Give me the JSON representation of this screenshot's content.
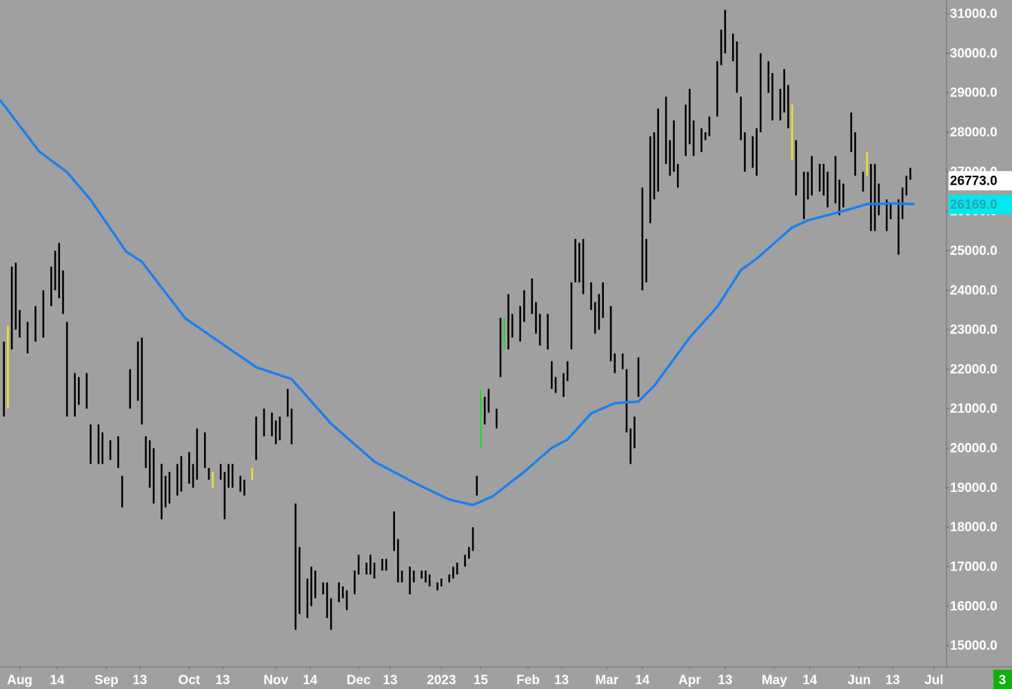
{
  "chart_data": {
    "type": "ohlc",
    "background": "#a0a0a0",
    "xlim": [
      0,
      240
    ],
    "ylim": [
      14460,
      31350
    ],
    "yticks": [
      {
        "value": 15000,
        "label": "15000.0"
      },
      {
        "value": 16000,
        "label": "16000.0"
      },
      {
        "value": 17000,
        "label": "17000.0"
      },
      {
        "value": 18000,
        "label": "18000.0"
      },
      {
        "value": 19000,
        "label": "19000.0"
      },
      {
        "value": 20000,
        "label": "20000.0"
      },
      {
        "value": 21000,
        "label": "21000.0"
      },
      {
        "value": 22000,
        "label": "22000.0"
      },
      {
        "value": 23000,
        "label": "23000.0"
      },
      {
        "value": 24000,
        "label": "24000.0"
      },
      {
        "value": 25000,
        "label": "25000.0"
      },
      {
        "value": 26000,
        "label": "26000.0"
      },
      {
        "value": 27000,
        "label": "27000.0"
      },
      {
        "value": 28000,
        "label": "28000.0"
      },
      {
        "value": 29000,
        "label": "29000.0"
      },
      {
        "value": 30000,
        "label": "30000.0"
      },
      {
        "value": 31000,
        "label": "31000.0"
      }
    ],
    "xticks": [
      {
        "value": 5,
        "label": "Aug"
      },
      {
        "value": 14.5,
        "label": "14"
      },
      {
        "value": 27,
        "label": "Sep"
      },
      {
        "value": 35.5,
        "label": "13"
      },
      {
        "value": 48,
        "label": "Oct"
      },
      {
        "value": 56.5,
        "label": "13"
      },
      {
        "value": 70,
        "label": "Nov"
      },
      {
        "value": 78.7,
        "label": "14"
      },
      {
        "value": 91,
        "label": "Dec"
      },
      {
        "value": 99,
        "label": "13"
      },
      {
        "value": 112,
        "label": "2023"
      },
      {
        "value": 122,
        "label": "15"
      },
      {
        "value": 134,
        "label": "Feb"
      },
      {
        "value": 142.5,
        "label": "13"
      },
      {
        "value": 154,
        "label": "Mar"
      },
      {
        "value": 163,
        "label": "14"
      },
      {
        "value": 175,
        "label": "Apr"
      },
      {
        "value": 184,
        "label": "13"
      },
      {
        "value": 196.5,
        "label": "May"
      },
      {
        "value": 205.5,
        "label": "14"
      },
      {
        "value": 218,
        "label": "Jun"
      },
      {
        "value": 226.5,
        "label": "13"
      },
      {
        "value": 237,
        "label": "Jul"
      }
    ],
    "series": [
      {
        "color": "#000000",
        "x": [
          1,
          3,
          4,
          5,
          7,
          9,
          11,
          13,
          14,
          15,
          16,
          17,
          19,
          20,
          22,
          23,
          25,
          26,
          28,
          30,
          31,
          33,
          35,
          36,
          37,
          38,
          39,
          41,
          42,
          43,
          45,
          46,
          48,
          49,
          50,
          52,
          53,
          56,
          57,
          58,
          59,
          61,
          62,
          65,
          67,
          69,
          70,
          71,
          73,
          74,
          75,
          76,
          78,
          79,
          80,
          82,
          83,
          84,
          86,
          87,
          88,
          90,
          91,
          93,
          94,
          95,
          97,
          98,
          100,
          101,
          102,
          104,
          105,
          107,
          108,
          109,
          111,
          112,
          114,
          115,
          116,
          118,
          119,
          120,
          121,
          123,
          124,
          126,
          127,
          129,
          130,
          132,
          133,
          135,
          136,
          137,
          139,
          140,
          141,
          143,
          144,
          145,
          146,
          147,
          148,
          150,
          151,
          152,
          153,
          155,
          156,
          158,
          159,
          160,
          161,
          162,
          163,
          164,
          165,
          166,
          167,
          169,
          170,
          171,
          172,
          174,
          175,
          176,
          178,
          179,
          180,
          182,
          183,
          184,
          186,
          187,
          188,
          189,
          191,
          192,
          193,
          195,
          196,
          198,
          199,
          200,
          202,
          204,
          205,
          206,
          208,
          209,
          210,
          212,
          213,
          214,
          216,
          217,
          219,
          221,
          222,
          223,
          225,
          226,
          228,
          229,
          230,
          231
        ],
        "high": [
          22700,
          24600,
          24700,
          23500,
          23200,
          23600,
          24000,
          24600,
          25000,
          25200,
          24500,
          23200,
          21900,
          21800,
          21900,
          20600,
          20600,
          20400,
          20200,
          20300,
          19300,
          22000,
          22700,
          22800,
          20300,
          20200,
          20000,
          19600,
          19300,
          19400,
          19600,
          19800,
          19900,
          19600,
          20500,
          20400,
          19500,
          19600,
          19400,
          19600,
          19600,
          19300,
          19200,
          20800,
          21000,
          20900,
          20700,
          20800,
          21500,
          21000,
          18600,
          17500,
          16700,
          17000,
          16900,
          16600,
          16600,
          16200,
          16600,
          16500,
          16400,
          16900,
          17300,
          17100,
          17300,
          17100,
          17200,
          17200,
          18400,
          17700,
          16900,
          17000,
          16900,
          16900,
          16900,
          16800,
          16600,
          16700,
          16800,
          17000,
          17100,
          17300,
          17500,
          18000,
          19300,
          21300,
          21500,
          21000,
          23300,
          23900,
          23400,
          23600,
          24000,
          24300,
          23700,
          23400,
          23400,
          22200,
          21800,
          21900,
          22200,
          24200,
          25300,
          25200,
          25300,
          24200,
          23700,
          23900,
          24200,
          23600,
          22400,
          22400,
          22000,
          20500,
          20800,
          22300,
          26600,
          25300,
          27900,
          28000,
          28600,
          28900,
          27800,
          28300,
          27200,
          28700,
          29100,
          28300,
          28100,
          28000,
          28400,
          29800,
          30600,
          31100,
          30500,
          30300,
          28900,
          28000,
          27900,
          28100,
          30000,
          29800,
          29500,
          29100,
          29600,
          29200,
          27800,
          27000,
          27000,
          27400,
          27200,
          27200,
          27000,
          27400,
          26800,
          26700,
          28500,
          28000,
          27000,
          27200,
          27200,
          26700,
          26300,
          26200,
          26300,
          26600,
          26900,
          27100
        ],
        "low": [
          20800,
          22500,
          23000,
          22800,
          22400,
          22700,
          22800,
          23600,
          24000,
          23800,
          23400,
          20800,
          20800,
          21100,
          21000,
          19600,
          19600,
          19600,
          19700,
          19500,
          18500,
          21000,
          21200,
          20600,
          19500,
          19000,
          18600,
          18200,
          18500,
          18600,
          18800,
          18900,
          19100,
          19000,
          19200,
          19500,
          19200,
          19200,
          18200,
          19000,
          19000,
          18900,
          18800,
          19700,
          20300,
          20300,
          20100,
          20200,
          20800,
          20100,
          15400,
          15800,
          15700,
          16000,
          16200,
          16300,
          15700,
          15400,
          16100,
          16200,
          15900,
          16300,
          16800,
          16800,
          16800,
          16700,
          16900,
          16900,
          17400,
          16600,
          16600,
          16300,
          16600,
          16700,
          16600,
          16500,
          16400,
          16500,
          16600,
          16700,
          16800,
          17000,
          17200,
          17400,
          18800,
          20600,
          20900,
          20500,
          21800,
          22500,
          22800,
          22700,
          23200,
          23400,
          22900,
          22600,
          22500,
          21500,
          21400,
          21300,
          21700,
          22500,
          24200,
          24200,
          23900,
          23500,
          22900,
          23000,
          23300,
          22200,
          21900,
          22000,
          20400,
          19600,
          20000,
          21300,
          24000,
          24200,
          25700,
          26300,
          26500,
          27200,
          26900,
          27000,
          26600,
          27400,
          27700,
          27400,
          27500,
          27800,
          27900,
          28400,
          29700,
          30000,
          29800,
          29000,
          27800,
          27000,
          27100,
          26900,
          28000,
          29000,
          28300,
          28300,
          28500,
          28100,
          26400,
          25800,
          26300,
          26400,
          26500,
          26400,
          26100,
          26200,
          25900,
          26100,
          27500,
          26900,
          26500,
          25500,
          25500,
          25900,
          25500,
          25800,
          24900,
          25800,
          26400,
          26800
        ]
      },
      {
        "color": "#f0e030",
        "x": [
          2,
          54,
          64,
          201,
          220
        ],
        "high": [
          23100,
          19400,
          19500,
          28700,
          27500
        ],
        "low": [
          21000,
          19000,
          19200,
          27300,
          26900
        ]
      },
      {
        "color": "#30d030",
        "x": [
          122,
          128
        ],
        "high": [
          21500,
          23300
        ],
        "low": [
          20000,
          22500
        ]
      }
    ],
    "lines": [
      {
        "color": "#1a7ff0",
        "x": [
          0,
          10,
          17,
          23,
          32,
          36,
          47,
          65,
          74,
          84,
          95,
          105,
          114,
          120,
          125,
          133,
          140,
          144,
          150,
          156,
          162,
          166,
          175,
          182,
          188,
          192,
          201,
          205,
          213,
          220,
          227,
          232
        ],
        "values": [
          28820,
          27510,
          26990,
          26290,
          24980,
          24720,
          23290,
          22050,
          21750,
          20620,
          19660,
          19130,
          18700,
          18560,
          18780,
          19400,
          20010,
          20220,
          20880,
          21140,
          21180,
          21580,
          22800,
          23580,
          24510,
          24800,
          25590,
          25770,
          25980,
          26180,
          26200,
          26180
        ]
      }
    ],
    "price_labels": [
      {
        "value": 26773,
        "label": "26773.0",
        "background": "#ffffff",
        "color": "#000000"
      },
      {
        "value": 26169,
        "label": "26169.0",
        "background": "#00e8f0",
        "color": "#30a0a8"
      }
    ],
    "badge": 3,
    "badge_color": "#10b010"
  }
}
